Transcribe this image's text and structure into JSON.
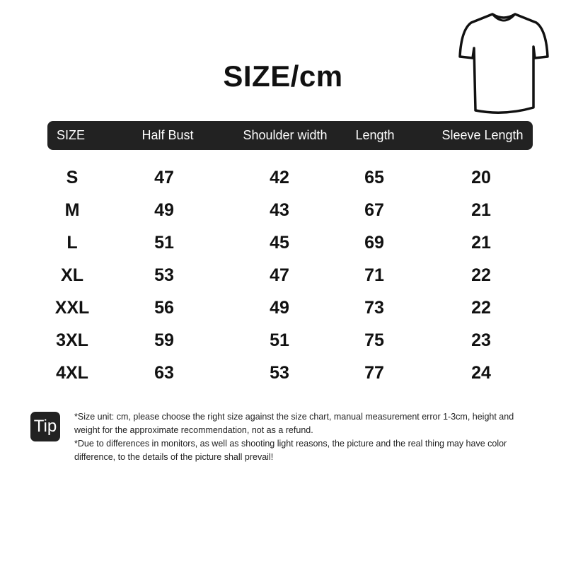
{
  "title": "SIZE/cm",
  "icon": "t-shirt-icon",
  "headers": [
    "SIZE",
    "Half Bust",
    "Shoulder width",
    "Length",
    "Sleeve Length"
  ],
  "rows": [
    [
      "S",
      "47",
      "42",
      "65",
      "20"
    ],
    [
      "M",
      "49",
      "43",
      "67",
      "21"
    ],
    [
      "L",
      "51",
      "45",
      "69",
      "21"
    ],
    [
      "XL",
      "53",
      "47",
      "71",
      "22"
    ],
    [
      "XXL",
      "56",
      "49",
      "73",
      "22"
    ],
    [
      "3XL",
      "59",
      "51",
      "75",
      "23"
    ],
    [
      "4XL",
      "63",
      "53",
      "77",
      "24"
    ]
  ],
  "tip": {
    "label": "Tip",
    "notes": [
      "*Size unit: cm, please choose the right size against the size chart, manual measurement error 1-3cm, height and weight for the approximate recommendation, not as a refund.",
      "*Due to differences in monitors, as well as shooting light reasons, the picture and the real thing may have color difference, to the details of the picture shall prevail!"
    ]
  },
  "colors": {
    "header_bg": "#222222",
    "text": "#111111"
  }
}
